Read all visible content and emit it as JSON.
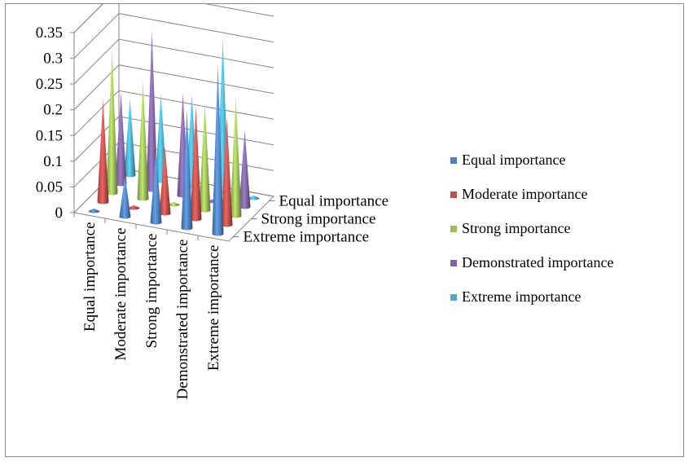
{
  "chart_data": {
    "type": "3d-cone-column",
    "y_axis": {
      "ticks": [
        "0",
        "0.05",
        "0.1",
        "0.15",
        "0.2",
        "0.25",
        "0.3",
        "0.35"
      ],
      "range": [
        0,
        0.35
      ]
    },
    "categories": [
      "Equal importance",
      "Moderate importance",
      "Strong importance",
      "Demonstrated importance",
      "Extreme importance"
    ],
    "depth_axis_labels": [
      "Equal importance",
      "Strong importance",
      "Extreme importance"
    ],
    "series": [
      {
        "name": "Equal importance",
        "color": "#4f81bd",
        "values": [
          0.005,
          0.08,
          0.14,
          0.23,
          0.33
        ]
      },
      {
        "name": "Moderate importance",
        "color": "#c0504d",
        "values": [
          0.2,
          0.005,
          0.13,
          0.22,
          0.21
        ]
      },
      {
        "name": "Strong importance",
        "color": "#9bbb59",
        "values": [
          0.28,
          0.23,
          0.005,
          0.21,
          0.23
        ]
      },
      {
        "name": "Demonstrated importance",
        "color": "#8064a2",
        "values": [
          0.18,
          0.31,
          0.2,
          0.005,
          0.15
        ]
      },
      {
        "name": "Extreme importance",
        "color": "#4bacc6",
        "values": [
          0.15,
          0.17,
          0.18,
          0.3,
          0.005
        ]
      }
    ],
    "legend_position": "right",
    "grid": true
  }
}
